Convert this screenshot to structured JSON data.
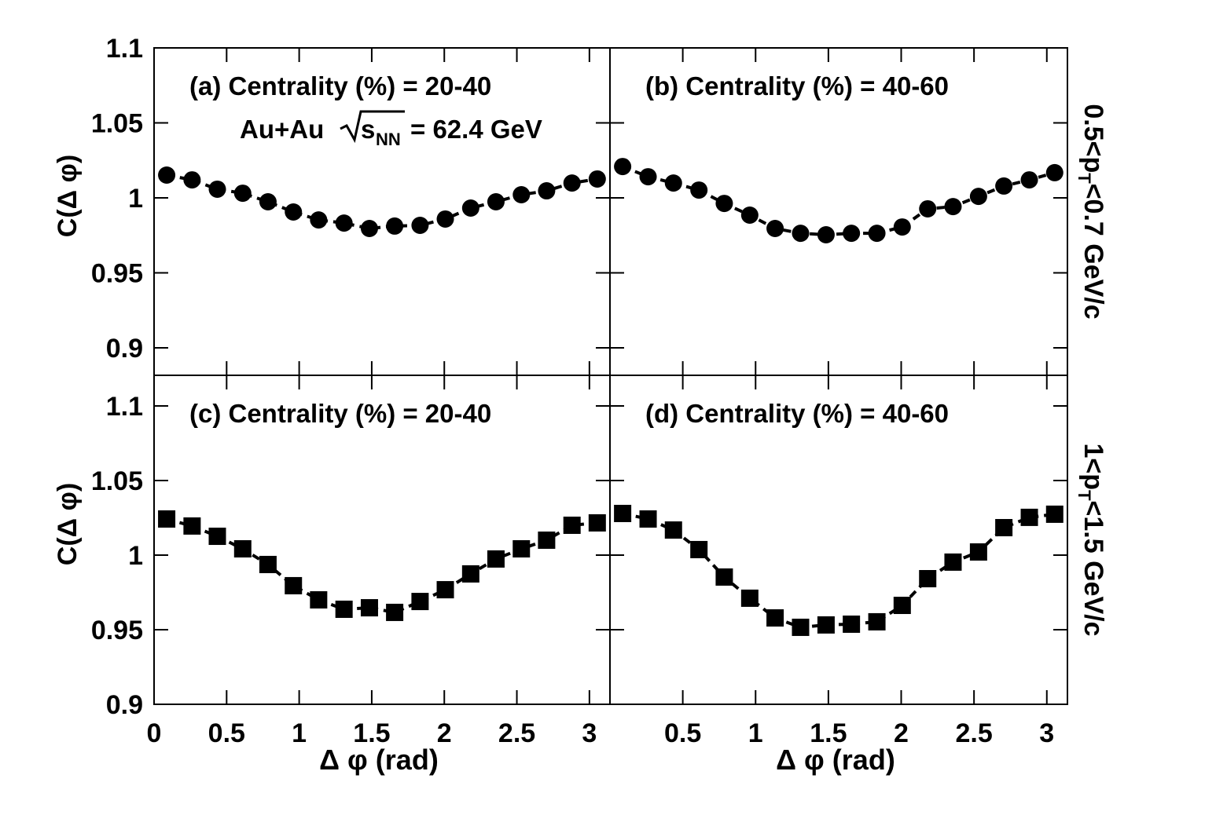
{
  "chart_data": [
    {
      "type": "scatter",
      "title": "(a)  Centrality (%) = 20-40",
      "annotation": {
        "system": "Au+Au",
        "var": "s",
        "sub": "NN",
        "energy": "= 62.4 GeV"
      },
      "ylabel": "C(Δ φ)",
      "marker": "circle",
      "color": "#000000",
      "line_style": "dashed",
      "x": [
        0.087,
        0.262,
        0.436,
        0.611,
        0.785,
        0.96,
        1.134,
        1.309,
        1.484,
        1.658,
        1.833,
        2.007,
        2.182,
        2.356,
        2.531,
        2.705,
        2.88,
        3.054
      ],
      "values": [
        1.0152,
        1.012,
        1.0058,
        1.0031,
        0.9974,
        0.9906,
        0.9853,
        0.9832,
        0.9796,
        0.9812,
        0.9817,
        0.9859,
        0.9932,
        0.9974,
        1.0021,
        1.0047,
        1.0099,
        1.0126
      ],
      "xlim": [
        0,
        3.1416
      ],
      "ylim": [
        0.8817,
        1.1
      ],
      "yticks": [
        0.9,
        0.95,
        1,
        1.05,
        1.1
      ]
    },
    {
      "type": "scatter",
      "title": "(b)  Centrality (%) = 40-60",
      "row_label": {
        "pre": "0.5<p",
        "sub": "T",
        "post": "<0.7 GeV/c"
      },
      "marker": "circle",
      "color": "#000000",
      "line_style": "dashed",
      "x": [
        0.087,
        0.262,
        0.436,
        0.611,
        0.785,
        0.96,
        1.134,
        1.309,
        1.484,
        1.658,
        1.833,
        2.007,
        2.182,
        2.356,
        2.531,
        2.705,
        2.88,
        3.054
      ],
      "values": [
        1.0209,
        1.0141,
        1.0099,
        1.0052,
        0.9963,
        0.9885,
        0.9796,
        0.9764,
        0.9754,
        0.9764,
        0.9764,
        0.9806,
        0.9927,
        0.9942,
        1.001,
        1.0079,
        1.012,
        1.0168
      ],
      "xlim": [
        0,
        3.1416
      ],
      "ylim": [
        0.8817,
        1.1
      ]
    },
    {
      "type": "scatter",
      "title": "(c)  Centrality (%) = 20-40",
      "ylabel": "C(Δ φ)",
      "xlabel": "Δ φ (rad)",
      "marker": "square",
      "color": "#000000",
      "line_style": "dashed",
      "x": [
        0.087,
        0.262,
        0.436,
        0.611,
        0.785,
        0.96,
        1.134,
        1.309,
        1.484,
        1.658,
        1.833,
        2.007,
        2.182,
        2.356,
        2.531,
        2.705,
        2.88,
        3.054
      ],
      "values": [
        1.0242,
        1.0195,
        1.0126,
        1.0042,
        0.9937,
        0.9795,
        0.97,
        0.9637,
        0.9647,
        0.9616,
        0.9689,
        0.9768,
        0.9874,
        0.9974,
        1.0042,
        1.01,
        1.02,
        1.0216
      ],
      "xlim": [
        0,
        3.1416
      ],
      "ylim": [
        0.9,
        1.1205
      ],
      "xticks": [
        0,
        0.5,
        1,
        1.5,
        2,
        2.5,
        3
      ],
      "yticks": [
        0.9,
        0.95,
        1,
        1.05,
        1.1
      ]
    },
    {
      "type": "scatter",
      "title": "(d) Centrality (%) = 40-60",
      "row_label": {
        "pre": "1<p",
        "sub": "T",
        "post": "<1.5 GeV/c"
      },
      "xlabel": "Δ φ (rad)",
      "marker": "square",
      "color": "#000000",
      "line_style": "dashed",
      "x": [
        0.087,
        0.262,
        0.436,
        0.611,
        0.785,
        0.96,
        1.134,
        1.309,
        1.484,
        1.658,
        1.833,
        2.007,
        2.182,
        2.356,
        2.531,
        2.705,
        2.88,
        3.054
      ],
      "values": [
        1.0279,
        1.0242,
        1.0168,
        1.0037,
        0.9853,
        0.9711,
        0.9579,
        0.9516,
        0.9532,
        0.9537,
        0.9553,
        0.9663,
        0.9842,
        0.9953,
        1.0021,
        1.0184,
        1.0253,
        1.0274
      ],
      "xlim": [
        0,
        3.1416
      ],
      "ylim": [
        0.9,
        1.1205
      ],
      "xticks": [
        0.5,
        1,
        1.5,
        2,
        2.5,
        3
      ]
    }
  ]
}
